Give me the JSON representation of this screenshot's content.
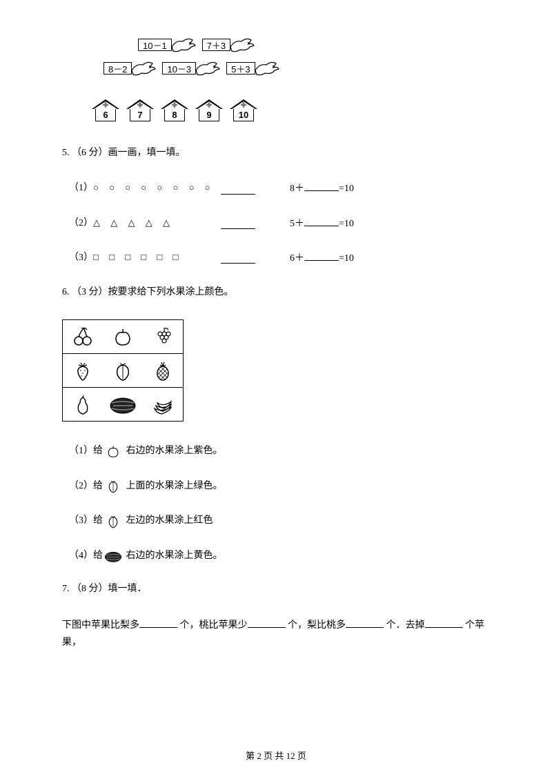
{
  "birds": {
    "row1": [
      "10－1",
      "7＋3"
    ],
    "row2": [
      "8－2",
      "10－3",
      "5＋3"
    ]
  },
  "houses": [
    "6",
    "7",
    "8",
    "9",
    "10"
  ],
  "q5": {
    "label": "5. （6 分）画一画，填一填。",
    "items": [
      {
        "num": "（1）",
        "shapes": "○ ○ ○ ○ ○ ○ ○ ○",
        "eq_left": "8＋",
        "eq_right": "=10"
      },
      {
        "num": "（2）",
        "shapes": "△ △ △ △ △",
        "eq_left": "5＋",
        "eq_right": "=10"
      },
      {
        "num": "（3）",
        "shapes": "□ □ □ □ □ □",
        "eq_left": "6＋",
        "eq_right": "=10"
      }
    ]
  },
  "q6": {
    "label": "6. （3 分）按要求给下列水果涂上颜色。",
    "instructions": [
      {
        "num": "（1）给",
        "icon": "apple",
        "text": " 右边的水果涂上紫色。"
      },
      {
        "num": "（2）给",
        "icon": "peach",
        "text": " 上面的水果涂上绿色。"
      },
      {
        "num": "（3）给",
        "icon": "peach",
        "text": " 左边的水果涂上红色"
      },
      {
        "num": "（4）给",
        "icon": "watermelon",
        "text": " 右边的水果涂上黄色。"
      }
    ]
  },
  "q7": {
    "label": "7. （8 分）填一填．",
    "text_parts": [
      "下图中苹果比梨多",
      "个，桃比苹果少",
      "个，梨比桃多",
      "个．去掉",
      "个苹果，"
    ]
  },
  "footer": "第 2 页 共 12 页",
  "colors": {
    "text": "#000000",
    "bg": "#ffffff"
  }
}
